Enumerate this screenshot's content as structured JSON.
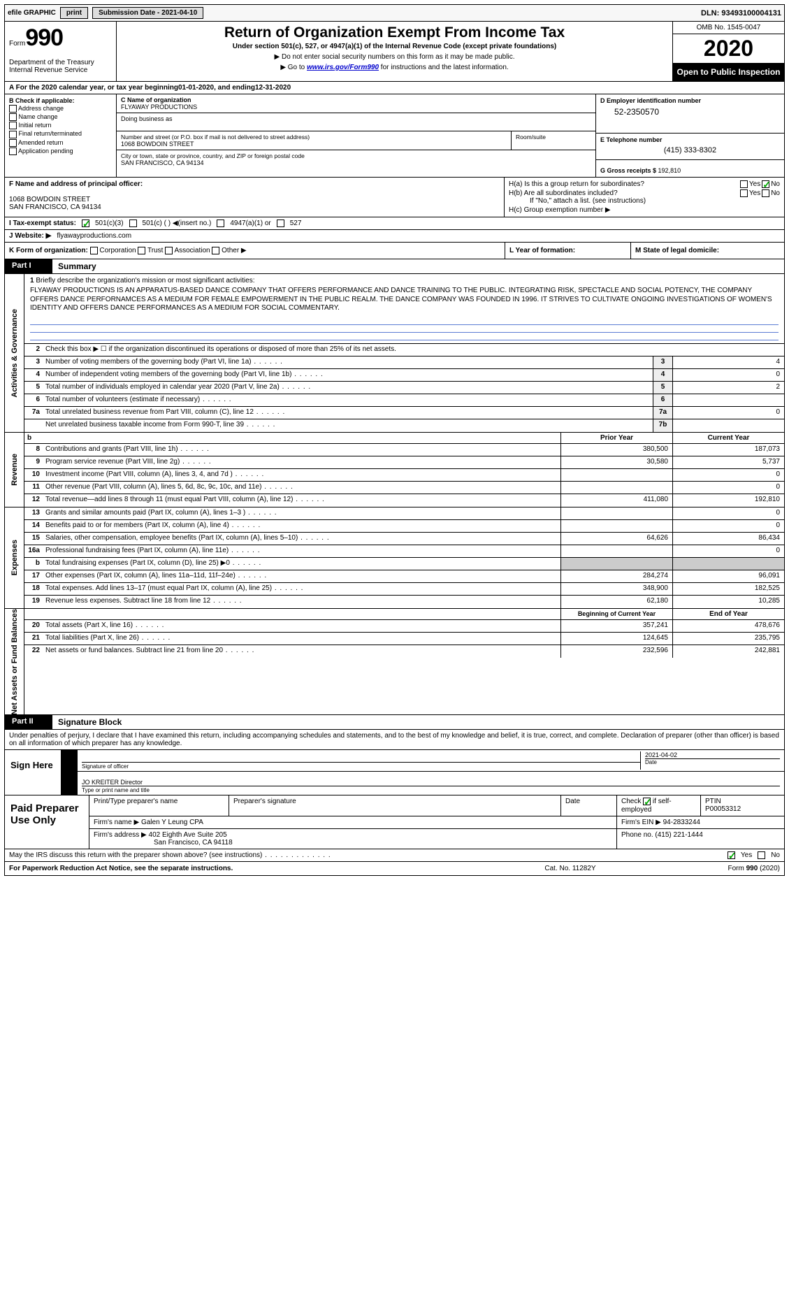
{
  "topbar": {
    "efile": "efile GRAPHIC",
    "print": "print",
    "sub_date_lbl": "Submission Date - 2021-04-10",
    "dln_lbl": "DLN: 93493100004131"
  },
  "header": {
    "form_word": "Form",
    "form_num": "990",
    "dept": "Department of the Treasury\nInternal Revenue Service",
    "title": "Return of Organization Exempt From Income Tax",
    "subtitle": "Under section 501(c), 527, or 4947(a)(1) of the Internal Revenue Code (except private foundations)",
    "note1": "▶ Do not enter social security numbers on this form as it may be made public.",
    "note2_pre": "▶ Go to ",
    "note2_link": "www.irs.gov/Form990",
    "note2_post": " for instructions and the latest information.",
    "omb": "OMB No. 1545-0047",
    "year": "2020",
    "public": "Open to Public Inspection"
  },
  "row_a": {
    "label": "A For the 2020 calendar year, or tax year beginning ",
    "begin": "01-01-2020",
    "mid": "  , and ending ",
    "end": "12-31-2020"
  },
  "col_b": {
    "header": "B Check if applicable:",
    "items": [
      "Address change",
      "Name change",
      "Initial return",
      "Final return/terminated",
      "Amended return",
      "Application pending"
    ]
  },
  "col_c": {
    "name_lbl": "C Name of organization",
    "name": "FLYAWAY PRODUCTIONS",
    "dba_lbl": "Doing business as",
    "addr_lbl": "Number and street (or P.O. box if mail is not delivered to street address)",
    "addr": "1068 BOWDOIN STREET",
    "room_lbl": "Room/suite",
    "city_lbl": "City or town, state or province, country, and ZIP or foreign postal code",
    "city": "SAN FRANCISCO, CA  94134"
  },
  "col_d": {
    "ein_lbl": "D Employer identification number",
    "ein": "52-2350570",
    "tel_lbl": "E Telephone number",
    "tel": "(415) 333-8302",
    "gross_lbl": "G Gross receipts $ ",
    "gross": "192,810"
  },
  "col_f": {
    "lbl": "F Name and address of principal officer:",
    "addr1": "1068 BOWDOIN STREET",
    "addr2": "SAN FRANCISCO, CA  94134"
  },
  "col_h": {
    "ha": "H(a)  Is this a group return for subordinates?",
    "hb": "H(b)  Are all subordinates included?",
    "hb_note": "If \"No,\" attach a list. (see instructions)",
    "hc": "H(c)  Group exemption number ▶",
    "yes": "Yes",
    "no": "No"
  },
  "row_i": {
    "lbl": "I    Tax-exempt status:",
    "o1": "501(c)(3)",
    "o2": "501(c) (  ) ◀(insert no.)",
    "o3": "4947(a)(1) or",
    "o4": "527"
  },
  "row_j": {
    "lbl": "J   Website: ▶",
    "val": "flyawayproductions.com"
  },
  "row_k": {
    "lbl": "K Form of organization:",
    "o": [
      "Corporation",
      "Trust",
      "Association",
      "Other ▶"
    ],
    "l_lbl": "L Year of formation:",
    "m_lbl": "M State of legal domicile:"
  },
  "part1": {
    "part": "Part I",
    "title": "Summary"
  },
  "activities": {
    "vtab": "Activities & Governance",
    "l1_lbl": "Briefly describe the organization's mission or most significant activities:",
    "l1_text": "FLYAWAY PRODUCTIONS IS AN APPARATUS-BASED DANCE COMPANY THAT OFFERS PERFORMANCE AND DANCE TRAINING TO THE PUBLIC. INTEGRATING RISK, SPECTACLE AND SOCIAL POTENCY, THE COMPANY OFFERS DANCE PERFORNAMCES AS A MEDIUM FOR FEMALE EMPOWERMENT IN THE PUBLIC REALM. THE DANCE COMPANY WAS FOUNDED IN 1996. IT STRIVES TO CULTIVATE ONGOING INVESTIGATIONS OF WOMEN'S IDENTITY AND OFFERS DANCE PERFORMANCES AS A MEDIUM FOR SOCIAL COMMENTARY.",
    "l2": "Check this box ▶ ☐ if the organization discontinued its operations or disposed of more than 25% of its net assets.",
    "lines": [
      {
        "n": "3",
        "t": "Number of voting members of the governing body (Part VI, line 1a)",
        "box": "3",
        "v": "4"
      },
      {
        "n": "4",
        "t": "Number of independent voting members of the governing body (Part VI, line 1b)",
        "box": "4",
        "v": "0"
      },
      {
        "n": "5",
        "t": "Total number of individuals employed in calendar year 2020 (Part V, line 2a)",
        "box": "5",
        "v": "2"
      },
      {
        "n": "6",
        "t": "Total number of volunteers (estimate if necessary)",
        "box": "6",
        "v": ""
      },
      {
        "n": "7a",
        "t": "Total unrelated business revenue from Part VIII, column (C), line 12",
        "box": "7a",
        "v": "0"
      },
      {
        "n": "",
        "t": "Net unrelated business taxable income from Form 990-T, line 39",
        "box": "7b",
        "v": ""
      }
    ]
  },
  "revenue": {
    "vtab": "Revenue",
    "hdr_prior": "Prior Year",
    "hdr_curr": "Current Year",
    "lines": [
      {
        "n": "8",
        "t": "Contributions and grants (Part VIII, line 1h)",
        "p": "380,500",
        "c": "187,073"
      },
      {
        "n": "9",
        "t": "Program service revenue (Part VIII, line 2g)",
        "p": "30,580",
        "c": "5,737"
      },
      {
        "n": "10",
        "t": "Investment income (Part VIII, column (A), lines 3, 4, and 7d )",
        "p": "",
        "c": "0"
      },
      {
        "n": "11",
        "t": "Other revenue (Part VIII, column (A), lines 5, 6d, 8c, 9c, 10c, and 11e)",
        "p": "",
        "c": "0"
      },
      {
        "n": "12",
        "t": "Total revenue—add lines 8 through 11 (must equal Part VIII, column (A), line 12)",
        "p": "411,080",
        "c": "192,810"
      }
    ]
  },
  "expenses": {
    "vtab": "Expenses",
    "lines": [
      {
        "n": "13",
        "t": "Grants and similar amounts paid (Part IX, column (A), lines 1–3 )",
        "p": "",
        "c": "0"
      },
      {
        "n": "14",
        "t": "Benefits paid to or for members (Part IX, column (A), line 4)",
        "p": "",
        "c": "0"
      },
      {
        "n": "15",
        "t": "Salaries, other compensation, employee benefits (Part IX, column (A), lines 5–10)",
        "p": "64,626",
        "c": "86,434"
      },
      {
        "n": "16a",
        "t": "Professional fundraising fees (Part IX, column (A), line 11e)",
        "p": "",
        "c": "0"
      },
      {
        "n": "b",
        "t": "Total fundraising expenses (Part IX, column (D), line 25) ▶0",
        "p": "—",
        "c": "—"
      },
      {
        "n": "17",
        "t": "Other expenses (Part IX, column (A), lines 11a–11d, 11f–24e)",
        "p": "284,274",
        "c": "96,091"
      },
      {
        "n": "18",
        "t": "Total expenses. Add lines 13–17 (must equal Part IX, column (A), line 25)",
        "p": "348,900",
        "c": "182,525"
      },
      {
        "n": "19",
        "t": "Revenue less expenses. Subtract line 18 from line 12",
        "p": "62,180",
        "c": "10,285"
      }
    ]
  },
  "netassets": {
    "vtab": "Net Assets or Fund Balances",
    "hdr_begin": "Beginning of Current Year",
    "hdr_end": "End of Year",
    "lines": [
      {
        "n": "20",
        "t": "Total assets (Part X, line 16)",
        "p": "357,241",
        "c": "478,676"
      },
      {
        "n": "21",
        "t": "Total liabilities (Part X, line 26)",
        "p": "124,645",
        "c": "235,795"
      },
      {
        "n": "22",
        "t": "Net assets or fund balances. Subtract line 21 from line 20",
        "p": "232,596",
        "c": "242,881"
      }
    ]
  },
  "part2": {
    "part": "Part II",
    "title": "Signature Block",
    "intro": "Under penalties of perjury, I declare that I have examined this return, including accompanying schedules and statements, and to the best of my knowledge and belief, it is true, correct, and complete. Declaration of preparer (other than officer) is based on all information of which preparer has any knowledge."
  },
  "sign": {
    "left": "Sign Here",
    "sig_lbl": "Signature of officer",
    "date": "2021-04-02",
    "date_lbl": "Date",
    "name": "JO KREITER  Director",
    "name_lbl": "Type or print name and title"
  },
  "prep": {
    "left": "Paid Preparer Use Only",
    "h1": "Print/Type preparer's name",
    "h2": "Preparer's signature",
    "h3": "Date",
    "h4_pre": "Check",
    "h4_post": "if self-employed",
    "h5": "PTIN",
    "ptin": "P00053312",
    "firm_lbl": "Firm's name    ▶",
    "firm": "Galen Y Leung CPA",
    "ein_lbl": "Firm's EIN ▶",
    "ein": "94-2833244",
    "addr_lbl": "Firm's address ▶",
    "addr1": "402 Eighth Ave Suite 205",
    "addr2": "San Francisco, CA  94118",
    "phone_lbl": "Phone no.",
    "phone": "(415) 221-1444"
  },
  "may": {
    "text": "May the IRS discuss this return with the preparer shown above? (see instructions)",
    "yes": "Yes",
    "no": "No"
  },
  "footer": {
    "f1": "For Paperwork Reduction Act Notice, see the separate instructions.",
    "f2": "Cat. No. 11282Y",
    "f3_pre": "Form ",
    "f3_b": "990",
    "f3_post": " (2020)"
  },
  "colors": {
    "link": "#0000cc",
    "blueline": "#5a7bd4",
    "check": "#0a9d0a"
  }
}
